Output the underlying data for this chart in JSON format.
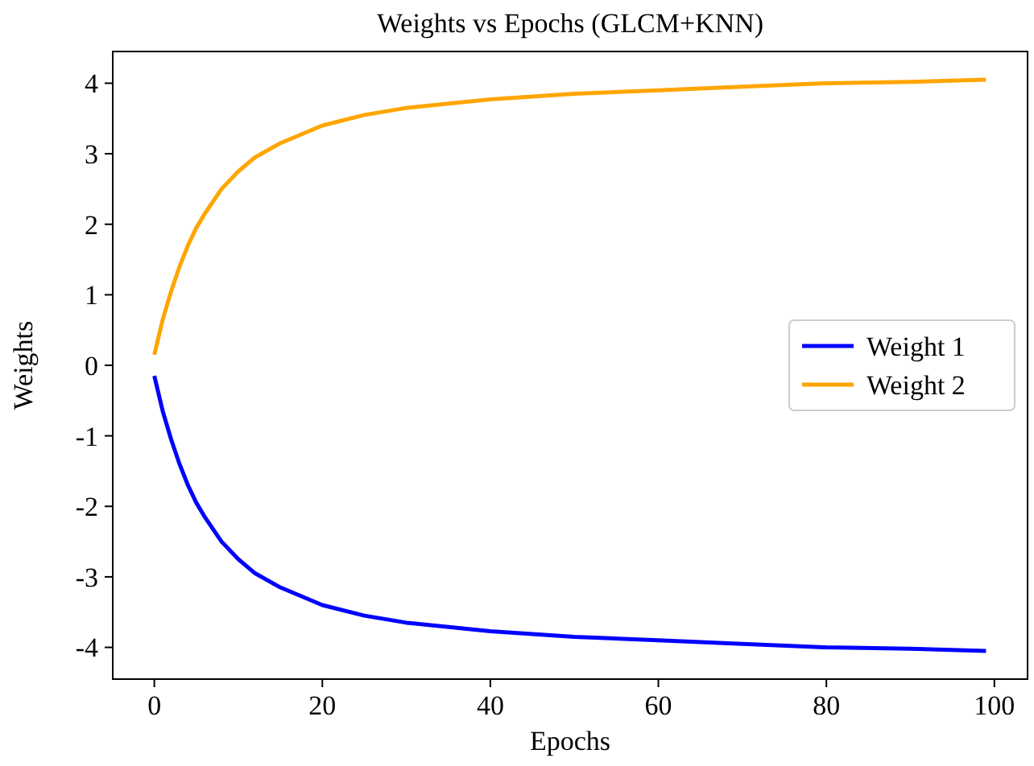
{
  "chart_data": {
    "type": "line",
    "title": "Weights vs Epochs (GLCM+KNN)",
    "xlabel": "Epochs",
    "ylabel": "Weights",
    "x": [
      0,
      1,
      2,
      3,
      4,
      5,
      6,
      8,
      10,
      12,
      15,
      20,
      25,
      30,
      40,
      50,
      60,
      70,
      80,
      90,
      99
    ],
    "series": [
      {
        "name": "Weight 1",
        "color": "#0000ff",
        "values": [
          -0.15,
          -0.65,
          -1.05,
          -1.4,
          -1.7,
          -1.95,
          -2.15,
          -2.5,
          -2.75,
          -2.95,
          -3.15,
          -3.4,
          -3.55,
          -3.65,
          -3.77,
          -3.85,
          -3.9,
          -3.95,
          -4.0,
          -4.02,
          -4.05
        ]
      },
      {
        "name": "Weight 2",
        "color": "#ffa500",
        "values": [
          0.15,
          0.65,
          1.05,
          1.4,
          1.7,
          1.95,
          2.15,
          2.5,
          2.75,
          2.95,
          3.15,
          3.4,
          3.55,
          3.65,
          3.77,
          3.85,
          3.9,
          3.95,
          4.0,
          4.02,
          4.05
        ]
      }
    ],
    "xlim": [
      -4.95,
      103.95
    ],
    "ylim": [
      -4.45,
      4.45
    ],
    "xticks": [
      0,
      20,
      40,
      60,
      80,
      100
    ],
    "yticks": [
      -4,
      -3,
      -2,
      -1,
      0,
      1,
      2,
      3,
      4
    ],
    "legend": "right",
    "grid": false,
    "marker": "none",
    "line_style": "solid"
  }
}
